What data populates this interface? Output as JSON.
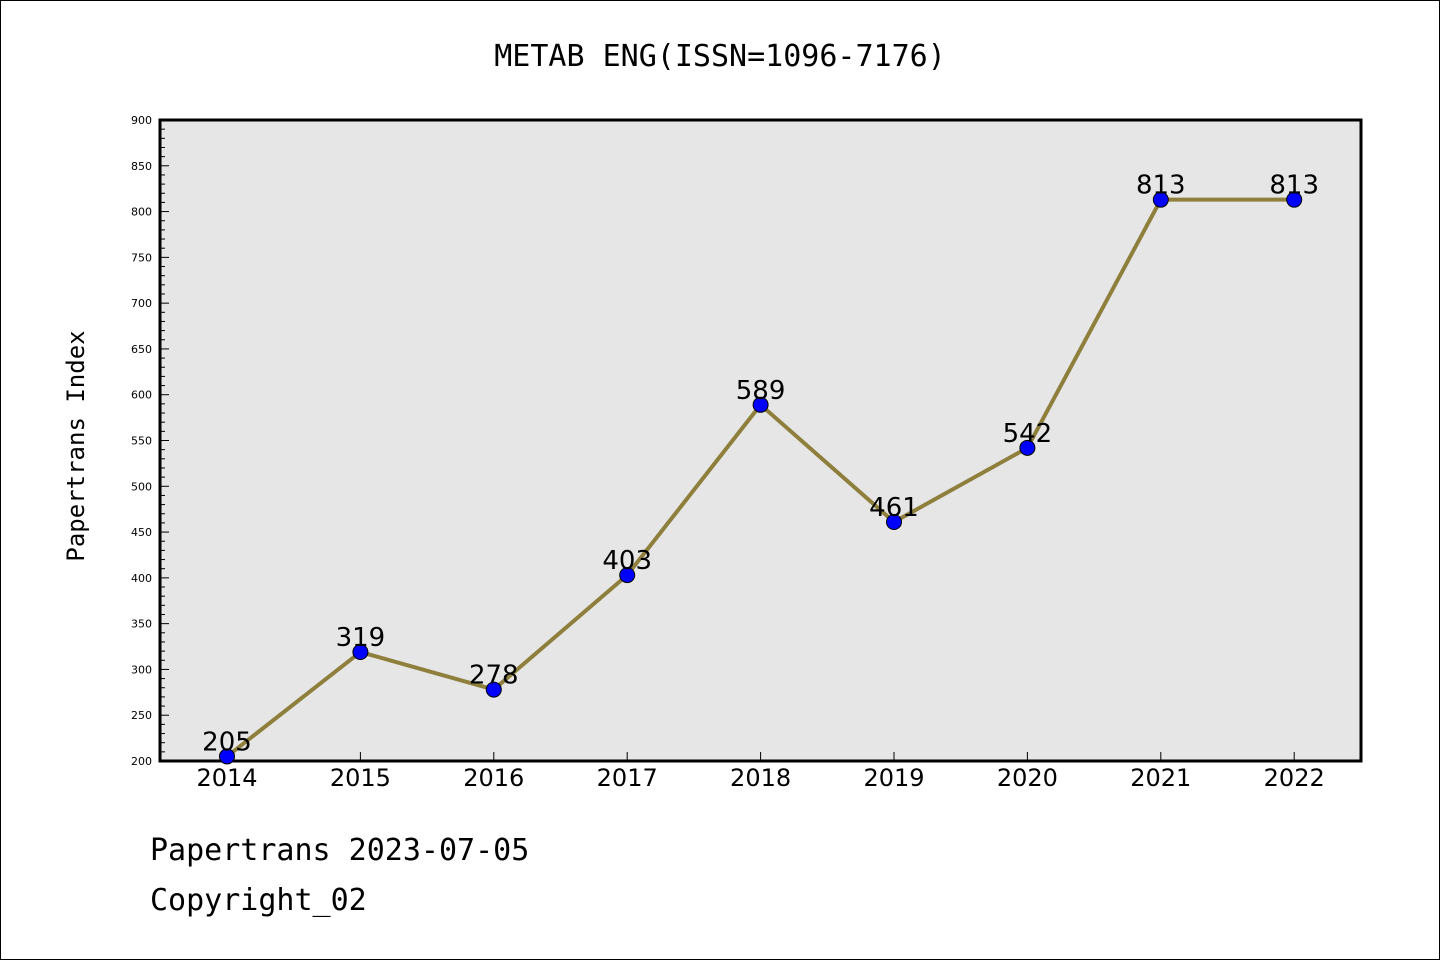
{
  "chart_data": {
    "type": "line",
    "title": "METAB ENG(ISSN=1096-7176)",
    "xlabel": "",
    "ylabel": "Papertrans Index",
    "x": [
      "2014",
      "2015",
      "2016",
      "2017",
      "2018",
      "2019",
      "2020",
      "2021",
      "2022"
    ],
    "series": [
      {
        "values": [
          205,
          319,
          278,
          403,
          589,
          461,
          542,
          813,
          813
        ]
      }
    ],
    "data_labels": [
      "205",
      "319",
      "278",
      "403",
      "589",
      "461",
      "542",
      "813",
      "813"
    ],
    "ylim": [
      200,
      900
    ],
    "yticks": [
      "200",
      "250",
      "300",
      "350",
      "400",
      "450",
      "500",
      "550",
      "600",
      "650",
      "700",
      "750",
      "800",
      "850",
      "900"
    ],
    "grid": false,
    "colors": {
      "line": "#8f7f3c",
      "marker": "#0000ff",
      "plot_bg": "#e6e6e6"
    }
  },
  "footer": {
    "line1": "Papertrans 2023-07-05",
    "line2": "Copyright_02"
  }
}
